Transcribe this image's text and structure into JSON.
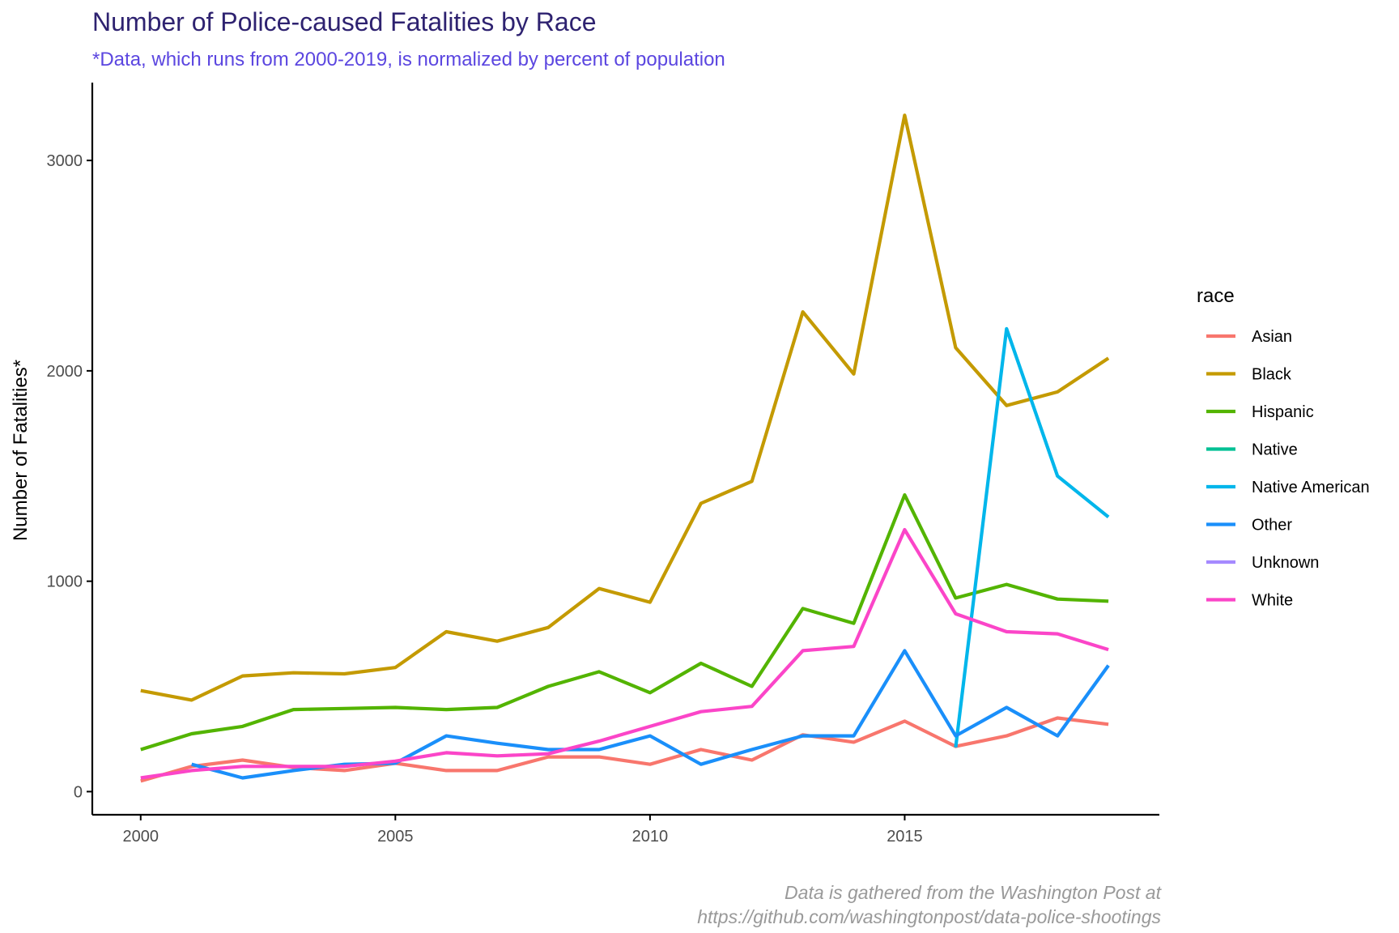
{
  "chart_data": {
    "type": "line",
    "title": "Number of Police-caused Fatalities by Race",
    "subtitle": "*Data, which runs from 2000-2019, is normalized by percent of population",
    "ylabel": "Number of Fatalities*",
    "xlabel": "",
    "caption_lines": [
      "Data is gathered from the Washington Post at",
      "https://github.com/washingtonpost/data-police-shootings"
    ],
    "xlim": [
      1999.05,
      2020.0
    ],
    "ylim": [
      -110,
      3370
    ],
    "x_ticks": [
      2000,
      2005,
      2010,
      2015
    ],
    "y_ticks": [
      0,
      1000,
      2000,
      3000
    ],
    "grid": false,
    "legend": {
      "title": "race",
      "placement": "right",
      "entries": [
        "Asian",
        "Black",
        "Hispanic",
        "Native",
        "Native American",
        "Other",
        "Unknown",
        "White"
      ]
    },
    "colors": {
      "title": "#2e2270",
      "subtitle": "#5b46e0",
      "caption": "#999999",
      "axis": "#000000"
    },
    "series": [
      {
        "name": "Asian",
        "color": "#f8766d",
        "x": [
          2000,
          2001,
          2002,
          2003,
          2004,
          2005,
          2006,
          2007,
          2008,
          2009,
          2010,
          2011,
          2012,
          2013,
          2014,
          2015,
          2016,
          2017,
          2018,
          2019
        ],
        "y": [
          50,
          120,
          150,
          115,
          100,
          135,
          100,
          100,
          165,
          165,
          130,
          200,
          150,
          270,
          235,
          335,
          215,
          265,
          350,
          320
        ]
      },
      {
        "name": "Black",
        "color": "#c49a00",
        "x": [
          2000,
          2001,
          2002,
          2003,
          2004,
          2005,
          2006,
          2007,
          2008,
          2009,
          2010,
          2011,
          2012,
          2013,
          2014,
          2015,
          2016,
          2017,
          2018,
          2019
        ],
        "y": [
          480,
          435,
          550,
          565,
          560,
          590,
          760,
          715,
          780,
          965,
          900,
          1370,
          1475,
          2280,
          1985,
          3215,
          2110,
          1835,
          1900,
          2060
        ]
      },
      {
        "name": "Hispanic",
        "color": "#53b400",
        "x": [
          2000,
          2001,
          2002,
          2003,
          2004,
          2005,
          2006,
          2007,
          2008,
          2009,
          2010,
          2011,
          2012,
          2013,
          2014,
          2015,
          2016,
          2017,
          2018,
          2019
        ],
        "y": [
          200,
          275,
          310,
          390,
          395,
          400,
          390,
          400,
          500,
          570,
          470,
          610,
          500,
          870,
          800,
          1410,
          920,
          985,
          915,
          905
        ]
      },
      {
        "name": "Native",
        "color": "#00c094",
        "x": [],
        "y": []
      },
      {
        "name": "Native American",
        "color": "#00b6eb",
        "x": [
          2016,
          2017,
          2018,
          2019
        ],
        "y": [
          210,
          2200,
          1500,
          1305
        ]
      },
      {
        "name": "Other",
        "color": "#1a8ffa",
        "x": [
          2001,
          2002,
          2003,
          2004,
          2005,
          2006,
          2007,
          2008,
          2009,
          2010,
          2011,
          2012,
          2013,
          2014,
          2015,
          2016,
          2017,
          2018,
          2019
        ],
        "y": [
          130,
          65,
          100,
          130,
          135,
          265,
          230,
          200,
          200,
          265,
          130,
          200,
          265,
          265,
          670,
          265,
          400,
          265,
          600
        ]
      },
      {
        "name": "Unknown",
        "color": "#a58aff",
        "x": [],
        "y": []
      },
      {
        "name": "White",
        "color": "#fb45c8",
        "x": [
          2000,
          2001,
          2002,
          2003,
          2004,
          2005,
          2006,
          2007,
          2008,
          2009,
          2010,
          2011,
          2012,
          2013,
          2014,
          2015,
          2016,
          2017,
          2018,
          2019
        ],
        "y": [
          65,
          100,
          120,
          120,
          120,
          145,
          185,
          170,
          180,
          240,
          310,
          380,
          405,
          670,
          690,
          1245,
          845,
          760,
          750,
          675
        ]
      }
    ]
  }
}
